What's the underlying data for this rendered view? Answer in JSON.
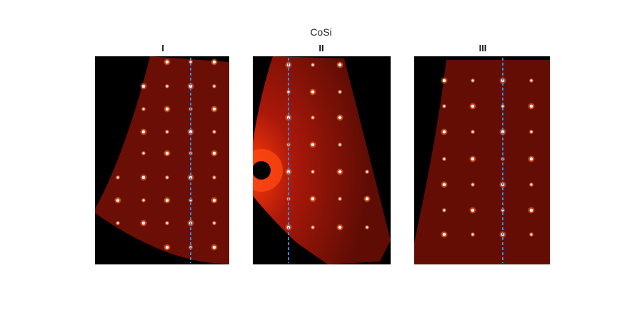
{
  "figure": {
    "title": "CoSi"
  },
  "panels": [
    {
      "label": "I"
    },
    {
      "label": "II"
    },
    {
      "label": "III"
    }
  ],
  "colors": {
    "background": "#000000",
    "map_fill": "#6e0f06",
    "map_fill_bright": "#b41a08",
    "spot": "#fff6e6",
    "spot_glow": "#ff6a2a",
    "dashed_line": "#2f8fe8"
  }
}
